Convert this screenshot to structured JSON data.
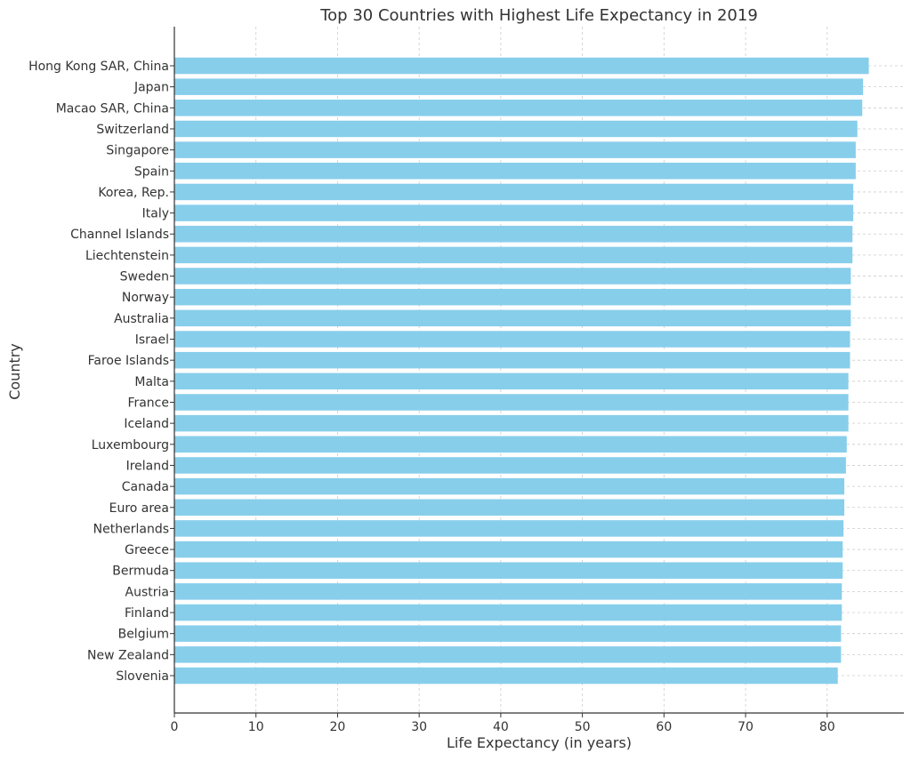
{
  "chart_data": {
    "type": "bar",
    "orientation": "horizontal",
    "title": "Top 30 Countries with Highest Life Expectancy in 2019",
    "xlabel": "Life Expectancy (in years)",
    "ylabel": "Country",
    "xlim": [
      0,
      89.4
    ],
    "xticks": [
      0,
      10,
      20,
      30,
      40,
      50,
      60,
      70,
      80
    ],
    "grid": true,
    "bar_color": "#87CEEB",
    "categories": [
      "Hong Kong SAR, China",
      "Japan",
      "Macao SAR, China",
      "Switzerland",
      "Singapore",
      "Spain",
      "Korea, Rep.",
      "Italy",
      "Channel Islands",
      "Liechtenstein",
      "Sweden",
      "Norway",
      "Australia",
      "Israel",
      "Faroe Islands",
      "Malta",
      "France",
      "Iceland",
      "Luxembourg",
      "Ireland",
      "Canada",
      "Euro area",
      "Netherlands",
      "Greece",
      "Bermuda",
      "Austria",
      "Finland",
      "Belgium",
      "New Zealand",
      "Slovenia"
    ],
    "values": [
      85.1,
      84.4,
      84.3,
      83.7,
      83.5,
      83.5,
      83.2,
      83.2,
      83.1,
      83.1,
      82.9,
      82.9,
      82.9,
      82.8,
      82.8,
      82.6,
      82.6,
      82.6,
      82.4,
      82.3,
      82.1,
      82.1,
      82.0,
      81.9,
      81.9,
      81.8,
      81.8,
      81.7,
      81.7,
      81.3
    ]
  }
}
